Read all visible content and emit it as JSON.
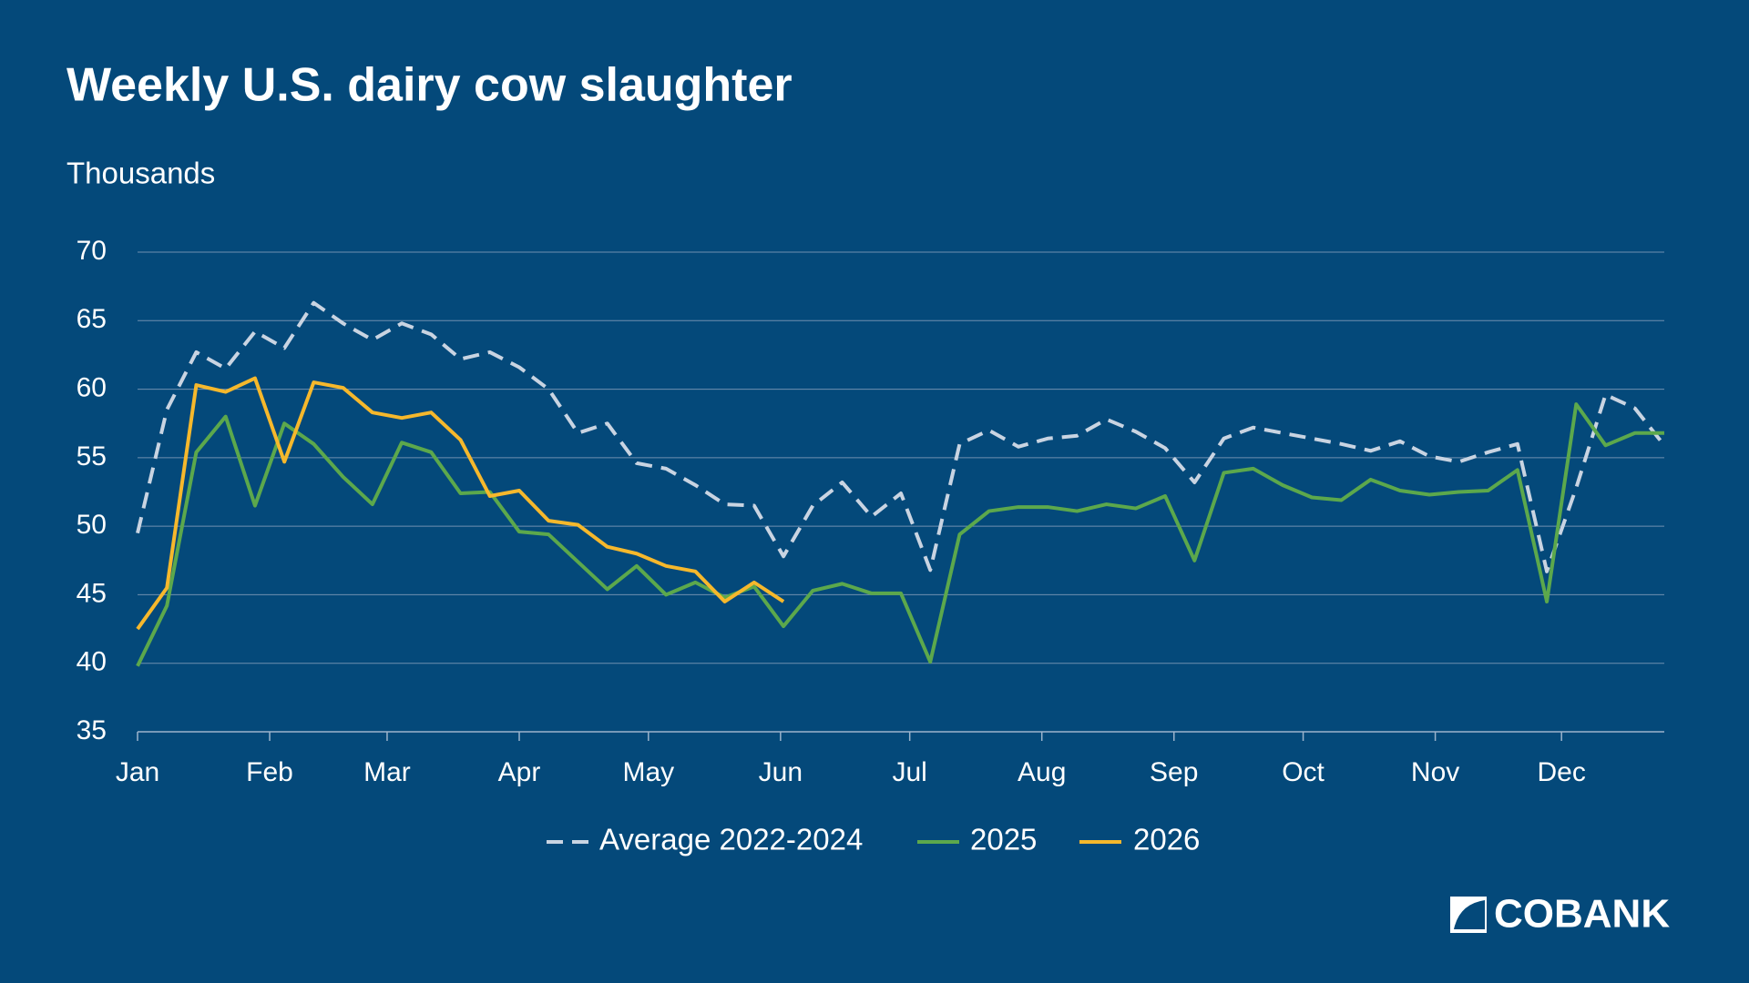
{
  "chart_data": {
    "type": "line",
    "title": "Weekly U.S. dairy cow slaughter",
    "subtitle": "Thousands",
    "logo": "COBANK",
    "x": [
      1,
      2,
      3,
      4,
      5,
      6,
      7,
      8,
      9,
      10,
      11,
      12,
      13,
      14,
      15,
      16,
      17,
      18,
      19,
      20,
      21,
      22,
      23,
      24,
      25,
      26,
      27,
      28,
      29,
      30,
      31,
      32,
      33,
      34,
      35,
      36,
      37,
      38,
      39,
      40,
      41,
      42,
      43,
      44,
      45,
      46,
      47,
      48,
      49,
      50,
      51,
      52,
      53
    ],
    "xlim": [
      1,
      53
    ],
    "xticks": [
      {
        "value": 1,
        "label": "Jan"
      },
      {
        "value": 5.5,
        "label": "Feb"
      },
      {
        "value": 9.5,
        "label": "Mar"
      },
      {
        "value": 14,
        "label": "Apr"
      },
      {
        "value": 18.4,
        "label": "May"
      },
      {
        "value": 22.9,
        "label": "Jun"
      },
      {
        "value": 27.3,
        "label": "Jul"
      },
      {
        "value": 31.8,
        "label": "Aug"
      },
      {
        "value": 36.3,
        "label": "Sep"
      },
      {
        "value": 40.7,
        "label": "Oct"
      },
      {
        "value": 45.2,
        "label": "Nov"
      },
      {
        "value": 49.5,
        "label": "Dec"
      }
    ],
    "ylim": [
      35,
      70
    ],
    "yticks": [
      35,
      40,
      45,
      50,
      55,
      60,
      65,
      70
    ],
    "grid": true,
    "series": [
      {
        "name": "Average 2022-2024",
        "color": "#c9d4e2",
        "dashed": true,
        "values": [
          49.5,
          58.5,
          62.7,
          61.5,
          64.2,
          63,
          66.3,
          64.8,
          63.6,
          64.8,
          64,
          62.2,
          62.7,
          61.6,
          60,
          56.8,
          57.5,
          54.6,
          54.2,
          53,
          51.6,
          51.5,
          47.8,
          51.5,
          53.2,
          50.7,
          52.4,
          46.8,
          56,
          57,
          55.8,
          56.4,
          56.6,
          57.8,
          56.9,
          55.7,
          53.2,
          56.4,
          57.2,
          56.8,
          56.4,
          56,
          55.5,
          56.2,
          55.1,
          54.7,
          55.4,
          56,
          46.7,
          52.8,
          59.6,
          58.6,
          55.9
        ]
      },
      {
        "name": "2025",
        "color": "#5ca84c",
        "dashed": false,
        "values": [
          39.8,
          44.2,
          55.4,
          58,
          51.5,
          57.5,
          56,
          53.6,
          51.6,
          56.1,
          55.4,
          52.4,
          52.5,
          49.6,
          49.4,
          47.4,
          45.4,
          47.1,
          45,
          45.9,
          44.8,
          45.6,
          42.7,
          45.3,
          45.8,
          45.1,
          45.1,
          40.1,
          49.4,
          51.1,
          51.4,
          51.4,
          51.1,
          51.6,
          51.3,
          52.2,
          47.5,
          53.9,
          54.2,
          53,
          52.1,
          51.9,
          53.4,
          52.6,
          52.3,
          52.5,
          52.6,
          54.1,
          44.5,
          58.9,
          55.9,
          56.8,
          56.8
        ]
      },
      {
        "name": "2026",
        "color": "#f6b82c",
        "dashed": false,
        "values": [
          42.5,
          45.5,
          60.3,
          59.8,
          60.8,
          54.7,
          60.5,
          60.1,
          58.3,
          57.9,
          58.3,
          56.3,
          52.2,
          52.6,
          50.4,
          50.1,
          48.5,
          48,
          47.1,
          46.7,
          44.5,
          45.9,
          44.5,
          null,
          null,
          null,
          null,
          null,
          null,
          null,
          null,
          null,
          null,
          null,
          null,
          null,
          null,
          null,
          null,
          null,
          null,
          null,
          null,
          null,
          null,
          null,
          null,
          null,
          null,
          null,
          null,
          null,
          null
        ]
      }
    ]
  }
}
